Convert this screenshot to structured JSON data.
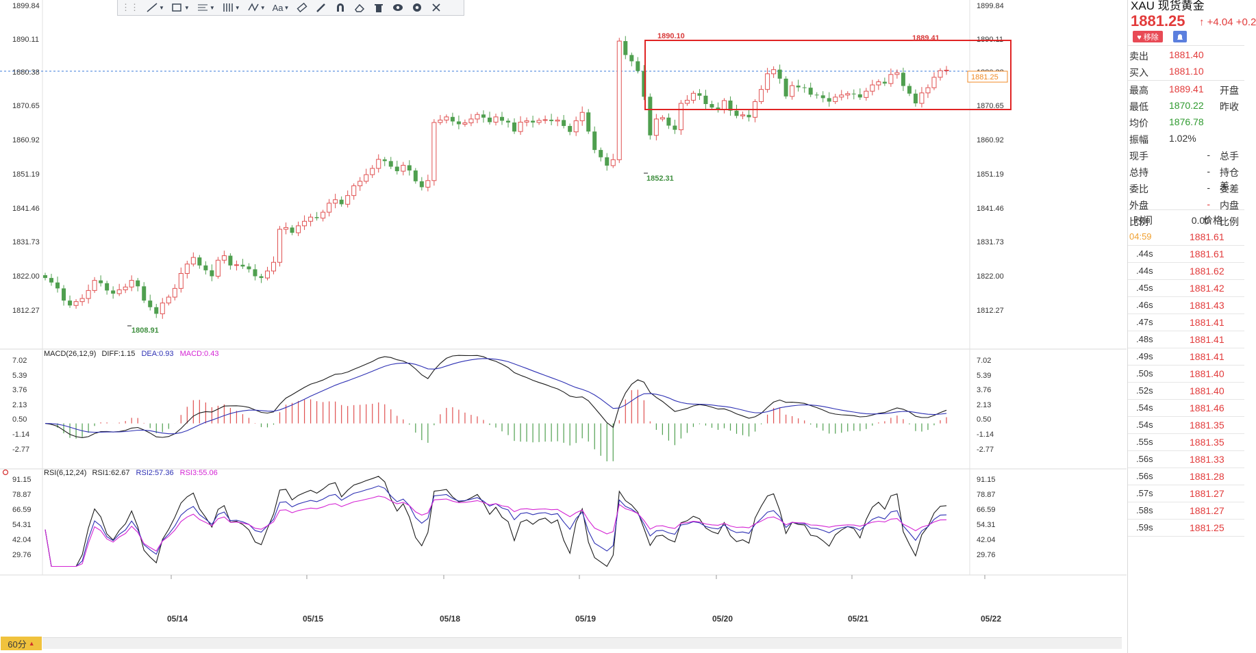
{
  "header": {
    "current_price_label": "1881.25",
    "toolbar_text_tool": "Aa"
  },
  "axis": {
    "price_ticks": [
      "1899.84",
      "1890.11",
      "1880.38",
      "1870.65",
      "1860.92",
      "1851.19",
      "1841.46",
      "1831.73",
      "1822.00",
      "1812.27"
    ],
    "macd_ticks": [
      "7.02",
      "5.39",
      "3.76",
      "2.13",
      "0.50",
      "-1.14",
      "-2.77"
    ],
    "rsi_ticks": [
      "91.15",
      "78.87",
      "66.59",
      "54.31",
      "42.04",
      "29.76"
    ],
    "date_labels": [
      "05/14",
      "05/15",
      "05/18",
      "05/19",
      "05/20",
      "05/21",
      "05/22"
    ]
  },
  "annotations": {
    "high_1": "1890.10",
    "high_2": "1889.41",
    "low_1": "1852.31",
    "low_2": "1808.91"
  },
  "indicators": {
    "macd_title": "MACD(26,12,9)",
    "macd_diff": "DIFF:1.15",
    "macd_dea": "DEA:0.93",
    "macd_macd": "MACD:0.43",
    "rsi_title": "RSI(6,12,24)",
    "rsi1": "RSI1:62.67",
    "rsi2": "RSI2:57.36",
    "rsi3": "RSI3:55.06"
  },
  "timeframe": "60分",
  "sidebar": {
    "title": "XAU 现货黄金",
    "price": "1881.25",
    "change": "↑ +4.04  +0.2",
    "delete_label": "♥ 移除",
    "quotes": [
      {
        "label": "卖出",
        "value": "1881.40"
      },
      {
        "label": "买入",
        "value": "1881.10"
      }
    ],
    "stats": [
      {
        "label": "最高",
        "value": "1889.41",
        "label2": "开盘",
        "color": "red"
      },
      {
        "label": "最低",
        "value": "1870.22",
        "label2": "昨收",
        "color": "green"
      },
      {
        "label": "均价",
        "value": "1876.78",
        "label2": "",
        "color": "green"
      },
      {
        "label": "振幅",
        "value": "1.02%",
        "label2": "",
        "color": "dark"
      }
    ],
    "extras": [
      {
        "label": "现手",
        "value": "-",
        "label2": "总手",
        "color": "dark"
      },
      {
        "label": "总持",
        "value": "-",
        "label2": "持仓差",
        "color": "dark"
      },
      {
        "label": "委比",
        "value": "-",
        "label2": "委差",
        "color": "dark"
      },
      {
        "label": "外盘",
        "value": "-",
        "label2": "内盘",
        "color": "red"
      },
      {
        "label": "比例",
        "value": "0.00",
        "label2": "比例",
        "color": "dark"
      }
    ],
    "tick_header": {
      "time": "时间",
      "price": "价格"
    },
    "ticks": [
      {
        "time": "04:59",
        "price": "1881.61",
        "highlight": true
      },
      {
        "time": ".44s",
        "price": "1881.61"
      },
      {
        "time": ".44s",
        "price": "1881.62"
      },
      {
        "time": ".45s",
        "price": "1881.42"
      },
      {
        "time": ".46s",
        "price": "1881.43"
      },
      {
        "time": ".47s",
        "price": "1881.41"
      },
      {
        "time": ".48s",
        "price": "1881.41"
      },
      {
        "time": ".49s",
        "price": "1881.41"
      },
      {
        "time": ".50s",
        "price": "1881.40"
      },
      {
        "time": ".52s",
        "price": "1881.40"
      },
      {
        "time": ".54s",
        "price": "1881.46"
      },
      {
        "time": ".54s",
        "price": "1881.35"
      },
      {
        "time": ".55s",
        "price": "1881.35"
      },
      {
        "time": ".56s",
        "price": "1881.33"
      },
      {
        "time": ".56s",
        "price": "1881.28"
      },
      {
        "time": ".57s",
        "price": "1881.27"
      },
      {
        "time": ".58s",
        "price": "1881.27"
      },
      {
        "time": ".59s",
        "price": "1881.25"
      }
    ]
  },
  "chart_data": {
    "type": "candlestick",
    "price_range": [
      1808.91,
      1899.84
    ],
    "candles_close_path": [
      1821.5,
      1820.2,
      1818.5,
      1815.0,
      1813.6,
      1814.7,
      1815.6,
      1817.9,
      1820.8,
      1820.0,
      1817.9,
      1817.0,
      1818.1,
      1818.9,
      1820.8,
      1819.1,
      1815.0,
      1813.1,
      1811.2,
      1814.3,
      1816.0,
      1818.5,
      1822.8,
      1825.5,
      1827.4,
      1825.1,
      1823.7,
      1822.0,
      1826.6,
      1827.9,
      1825.1,
      1825.3,
      1824.8,
      1824.0,
      1822.0,
      1821.5,
      1823.5,
      1826.0,
      1835.5,
      1836.0,
      1834.5,
      1836.5,
      1837.8,
      1839.0,
      1838.7,
      1840.4,
      1843.0,
      1844.0,
      1842.7,
      1845.2,
      1848.0,
      1849.3,
      1851.2,
      1853.0,
      1855.6,
      1855.1,
      1853.5,
      1852.2,
      1853.9,
      1852.4,
      1849.3,
      1847.6,
      1849.5,
      1866.2,
      1866.9,
      1867.8,
      1866.5,
      1865.7,
      1866.1,
      1867.2,
      1868.5,
      1867.6,
      1866.3,
      1867.8,
      1866.7,
      1866.2,
      1863.6,
      1866.3,
      1866.7,
      1866.2,
      1866.8,
      1867.0,
      1866.6,
      1866.9,
      1865.2,
      1863.5,
      1866.7,
      1869.1,
      1863.6,
      1858.3,
      1856.2,
      1853.8,
      1855.5,
      1889.6,
      1885.6,
      1883.8,
      1881.0,
      1873.6,
      1862.5,
      1867.2,
      1867.6,
      1865.3,
      1864.1,
      1871.7,
      1872.6,
      1874.6,
      1873.9,
      1871.5,
      1870.5,
      1870.0,
      1872.5,
      1869.6,
      1868.1,
      1868.4,
      1867.7,
      1872.2,
      1875.7,
      1880.2,
      1881.4,
      1878.8,
      1873.7,
      1876.8,
      1876.3,
      1876.2,
      1874.2,
      1874.0,
      1873.2,
      1872.2,
      1873.5,
      1874.1,
      1874.5,
      1874.3,
      1873.4,
      1875.2,
      1877.0,
      1877.9,
      1877.4,
      1880.0,
      1880.5,
      1876.7,
      1874.5,
      1871.7,
      1874.7,
      1876.2,
      1879.2,
      1881.1,
      1881.25
    ]
  }
}
